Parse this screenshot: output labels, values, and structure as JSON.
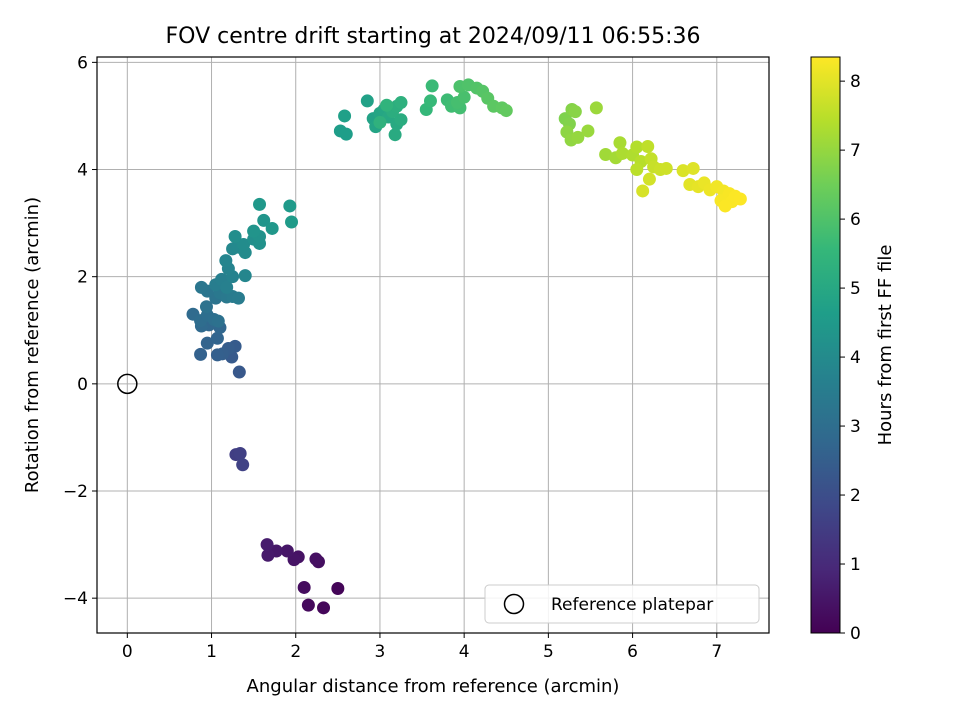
{
  "chart_data": {
    "type": "scatter",
    "title": "FOV centre drift starting at 2024/09/11 06:55:36",
    "xlabel": "Angular distance from reference (arcmin)",
    "ylabel": "Rotation from reference (arcmin)",
    "xlim": [
      -0.36,
      7.62
    ],
    "ylim": [
      -4.65,
      6.1
    ],
    "xticks": [
      0,
      1,
      2,
      3,
      4,
      5,
      6,
      7
    ],
    "yticks": [
      -4,
      -2,
      0,
      2,
      4,
      6
    ],
    "grid": true,
    "legend": {
      "position": "lower-right",
      "entries": [
        "Reference platepar"
      ]
    },
    "reference_point": {
      "x": 0,
      "y": 0,
      "marker": "open-circle"
    },
    "colorbar": {
      "label": "Hours from first FF file",
      "colormap": "viridis",
      "range": [
        0,
        8.35
      ],
      "ticks": [
        0,
        1,
        2,
        3,
        4,
        5,
        6,
        7,
        8
      ]
    },
    "points": [
      {
        "x": 2.5,
        "y": -3.82,
        "h": 0.1
      },
      {
        "x": 2.33,
        "y": -4.18,
        "h": 0.15
      },
      {
        "x": 2.15,
        "y": -4.13,
        "h": 0.2
      },
      {
        "x": 2.1,
        "y": -3.8,
        "h": 0.25
      },
      {
        "x": 2.27,
        "y": -3.32,
        "h": 0.3
      },
      {
        "x": 2.24,
        "y": -3.27,
        "h": 0.35
      },
      {
        "x": 2.03,
        "y": -3.23,
        "h": 0.4
      },
      {
        "x": 1.98,
        "y": -3.28,
        "h": 0.45
      },
      {
        "x": 1.9,
        "y": -3.12,
        "h": 0.5
      },
      {
        "x": 1.77,
        "y": -3.12,
        "h": 0.55
      },
      {
        "x": 1.67,
        "y": -3.2,
        "h": 0.6
      },
      {
        "x": 1.66,
        "y": -3.0,
        "h": 0.65
      },
      {
        "x": 1.29,
        "y": -1.32,
        "h": 1.55
      },
      {
        "x": 1.34,
        "y": -1.3,
        "h": 1.6
      },
      {
        "x": 1.37,
        "y": -1.51,
        "h": 1.65
      },
      {
        "x": 1.33,
        "y": 0.22,
        "h": 2.3
      },
      {
        "x": 1.24,
        "y": 0.5,
        "h": 2.35
      },
      {
        "x": 1.28,
        "y": 0.7,
        "h": 2.4
      },
      {
        "x": 1.2,
        "y": 0.66,
        "h": 2.45
      },
      {
        "x": 1.13,
        "y": 0.56,
        "h": 2.5
      },
      {
        "x": 1.07,
        "y": 0.54,
        "h": 2.55
      },
      {
        "x": 0.87,
        "y": 0.55,
        "h": 2.6
      },
      {
        "x": 0.95,
        "y": 0.76,
        "h": 2.65
      },
      {
        "x": 1.07,
        "y": 0.85,
        "h": 2.7
      },
      {
        "x": 1.1,
        "y": 1.05,
        "h": 2.75
      },
      {
        "x": 0.97,
        "y": 1.1,
        "h": 2.8
      },
      {
        "x": 0.88,
        "y": 1.08,
        "h": 2.85
      },
      {
        "x": 0.78,
        "y": 1.3,
        "h": 2.9
      },
      {
        "x": 0.87,
        "y": 1.18,
        "h": 2.95
      },
      {
        "x": 0.95,
        "y": 1.28,
        "h": 3.0
      },
      {
        "x": 1.03,
        "y": 1.2,
        "h": 3.05
      },
      {
        "x": 1.08,
        "y": 1.17,
        "h": 3.1
      },
      {
        "x": 0.94,
        "y": 1.44,
        "h": 3.15
      },
      {
        "x": 1.05,
        "y": 1.6,
        "h": 3.2
      },
      {
        "x": 0.95,
        "y": 1.73,
        "h": 3.25
      },
      {
        "x": 0.88,
        "y": 1.8,
        "h": 3.3
      },
      {
        "x": 1.1,
        "y": 1.7,
        "h": 3.35
      },
      {
        "x": 1.18,
        "y": 1.62,
        "h": 3.4
      },
      {
        "x": 1.25,
        "y": 1.63,
        "h": 3.45
      },
      {
        "x": 1.32,
        "y": 1.6,
        "h": 3.5
      },
      {
        "x": 1.05,
        "y": 1.85,
        "h": 3.55
      },
      {
        "x": 1.12,
        "y": 1.95,
        "h": 3.6
      },
      {
        "x": 1.18,
        "y": 1.8,
        "h": 3.65
      },
      {
        "x": 1.25,
        "y": 2.0,
        "h": 3.7
      },
      {
        "x": 1.2,
        "y": 2.15,
        "h": 3.75
      },
      {
        "x": 1.17,
        "y": 2.3,
        "h": 3.8
      },
      {
        "x": 1.4,
        "y": 2.02,
        "h": 3.85
      },
      {
        "x": 1.25,
        "y": 2.52,
        "h": 3.9
      },
      {
        "x": 1.32,
        "y": 2.55,
        "h": 3.95
      },
      {
        "x": 1.4,
        "y": 2.45,
        "h": 4.0
      },
      {
        "x": 1.38,
        "y": 2.6,
        "h": 4.05
      },
      {
        "x": 1.28,
        "y": 2.75,
        "h": 4.1
      },
      {
        "x": 1.5,
        "y": 2.7,
        "h": 4.15
      },
      {
        "x": 1.57,
        "y": 2.62,
        "h": 4.2
      },
      {
        "x": 1.57,
        "y": 2.75,
        "h": 4.25
      },
      {
        "x": 1.5,
        "y": 2.85,
        "h": 4.3
      },
      {
        "x": 1.62,
        "y": 3.05,
        "h": 4.35
      },
      {
        "x": 1.72,
        "y": 2.9,
        "h": 4.4
      },
      {
        "x": 1.57,
        "y": 3.35,
        "h": 4.45
      },
      {
        "x": 1.93,
        "y": 3.32,
        "h": 4.5
      },
      {
        "x": 1.95,
        "y": 3.02,
        "h": 4.55
      },
      {
        "x": 2.53,
        "y": 4.72,
        "h": 4.6
      },
      {
        "x": 2.6,
        "y": 4.66,
        "h": 4.65
      },
      {
        "x": 2.58,
        "y": 5.0,
        "h": 4.7
      },
      {
        "x": 2.85,
        "y": 5.28,
        "h": 4.75
      },
      {
        "x": 2.92,
        "y": 4.95,
        "h": 4.8
      },
      {
        "x": 2.95,
        "y": 4.8,
        "h": 4.85
      },
      {
        "x": 3.0,
        "y": 5.05,
        "h": 4.9
      },
      {
        "x": 3.05,
        "y": 5.12,
        "h": 4.95
      },
      {
        "x": 3.1,
        "y": 4.98,
        "h": 5.0
      },
      {
        "x": 3.2,
        "y": 4.85,
        "h": 5.05
      },
      {
        "x": 3.18,
        "y": 4.65,
        "h": 5.1
      },
      {
        "x": 3.25,
        "y": 4.93,
        "h": 5.15
      },
      {
        "x": 3.15,
        "y": 5.08,
        "h": 5.2
      },
      {
        "x": 3.2,
        "y": 5.18,
        "h": 5.25
      },
      {
        "x": 3.25,
        "y": 5.25,
        "h": 5.3
      },
      {
        "x": 3.0,
        "y": 4.88,
        "h": 5.35
      },
      {
        "x": 3.08,
        "y": 5.2,
        "h": 5.4
      },
      {
        "x": 3.55,
        "y": 5.12,
        "h": 5.55
      },
      {
        "x": 3.6,
        "y": 5.28,
        "h": 5.6
      },
      {
        "x": 3.62,
        "y": 5.56,
        "h": 5.65
      },
      {
        "x": 3.8,
        "y": 5.3,
        "h": 5.7
      },
      {
        "x": 3.85,
        "y": 5.18,
        "h": 5.75
      },
      {
        "x": 3.95,
        "y": 5.15,
        "h": 5.8
      },
      {
        "x": 3.92,
        "y": 5.25,
        "h": 5.85
      },
      {
        "x": 4.0,
        "y": 5.35,
        "h": 5.9
      },
      {
        "x": 3.95,
        "y": 5.55,
        "h": 5.95
      },
      {
        "x": 4.05,
        "y": 5.58,
        "h": 6.0
      },
      {
        "x": 4.15,
        "y": 5.52,
        "h": 6.05
      },
      {
        "x": 4.22,
        "y": 5.46,
        "h": 6.1
      },
      {
        "x": 4.28,
        "y": 5.33,
        "h": 6.15
      },
      {
        "x": 4.35,
        "y": 5.18,
        "h": 6.2
      },
      {
        "x": 4.45,
        "y": 5.15,
        "h": 6.25
      },
      {
        "x": 4.5,
        "y": 5.1,
        "h": 6.3
      },
      {
        "x": 5.2,
        "y": 4.95,
        "h": 6.7
      },
      {
        "x": 5.25,
        "y": 4.85,
        "h": 6.75
      },
      {
        "x": 5.28,
        "y": 5.12,
        "h": 6.8
      },
      {
        "x": 5.32,
        "y": 5.08,
        "h": 6.85
      },
      {
        "x": 5.22,
        "y": 4.7,
        "h": 6.9
      },
      {
        "x": 5.27,
        "y": 4.55,
        "h": 6.95
      },
      {
        "x": 5.35,
        "y": 4.6,
        "h": 7.0
      },
      {
        "x": 5.47,
        "y": 4.72,
        "h": 7.05
      },
      {
        "x": 5.57,
        "y": 5.15,
        "h": 7.1
      },
      {
        "x": 5.68,
        "y": 4.28,
        "h": 7.15
      },
      {
        "x": 5.8,
        "y": 4.22,
        "h": 7.2
      },
      {
        "x": 5.85,
        "y": 4.5,
        "h": 7.25
      },
      {
        "x": 5.88,
        "y": 4.3,
        "h": 7.3
      },
      {
        "x": 6.0,
        "y": 4.27,
        "h": 7.35
      },
      {
        "x": 6.05,
        "y": 4.42,
        "h": 7.4
      },
      {
        "x": 6.1,
        "y": 4.15,
        "h": 7.45
      },
      {
        "x": 6.05,
        "y": 4.0,
        "h": 7.5
      },
      {
        "x": 6.18,
        "y": 4.43,
        "h": 7.55
      },
      {
        "x": 6.22,
        "y": 4.2,
        "h": 7.6
      },
      {
        "x": 6.25,
        "y": 4.05,
        "h": 7.65
      },
      {
        "x": 6.33,
        "y": 4.0,
        "h": 7.7
      },
      {
        "x": 6.4,
        "y": 4.02,
        "h": 7.75
      },
      {
        "x": 6.2,
        "y": 3.82,
        "h": 7.8
      },
      {
        "x": 6.12,
        "y": 3.6,
        "h": 7.85
      },
      {
        "x": 6.6,
        "y": 3.98,
        "h": 7.9
      },
      {
        "x": 6.72,
        "y": 4.02,
        "h": 7.95
      },
      {
        "x": 6.68,
        "y": 3.72,
        "h": 8.0
      },
      {
        "x": 6.78,
        "y": 3.68,
        "h": 8.05
      },
      {
        "x": 6.85,
        "y": 3.75,
        "h": 8.1
      },
      {
        "x": 6.92,
        "y": 3.62,
        "h": 8.15
      },
      {
        "x": 7.0,
        "y": 3.68,
        "h": 8.2
      },
      {
        "x": 7.08,
        "y": 3.6,
        "h": 8.22
      },
      {
        "x": 7.12,
        "y": 3.48,
        "h": 8.25
      },
      {
        "x": 7.05,
        "y": 3.42,
        "h": 8.27
      },
      {
        "x": 7.15,
        "y": 3.55,
        "h": 8.29
      },
      {
        "x": 7.18,
        "y": 3.4,
        "h": 8.31
      },
      {
        "x": 7.22,
        "y": 3.5,
        "h": 8.32
      },
      {
        "x": 7.1,
        "y": 3.32,
        "h": 8.33
      },
      {
        "x": 7.28,
        "y": 3.45,
        "h": 8.34
      }
    ]
  }
}
